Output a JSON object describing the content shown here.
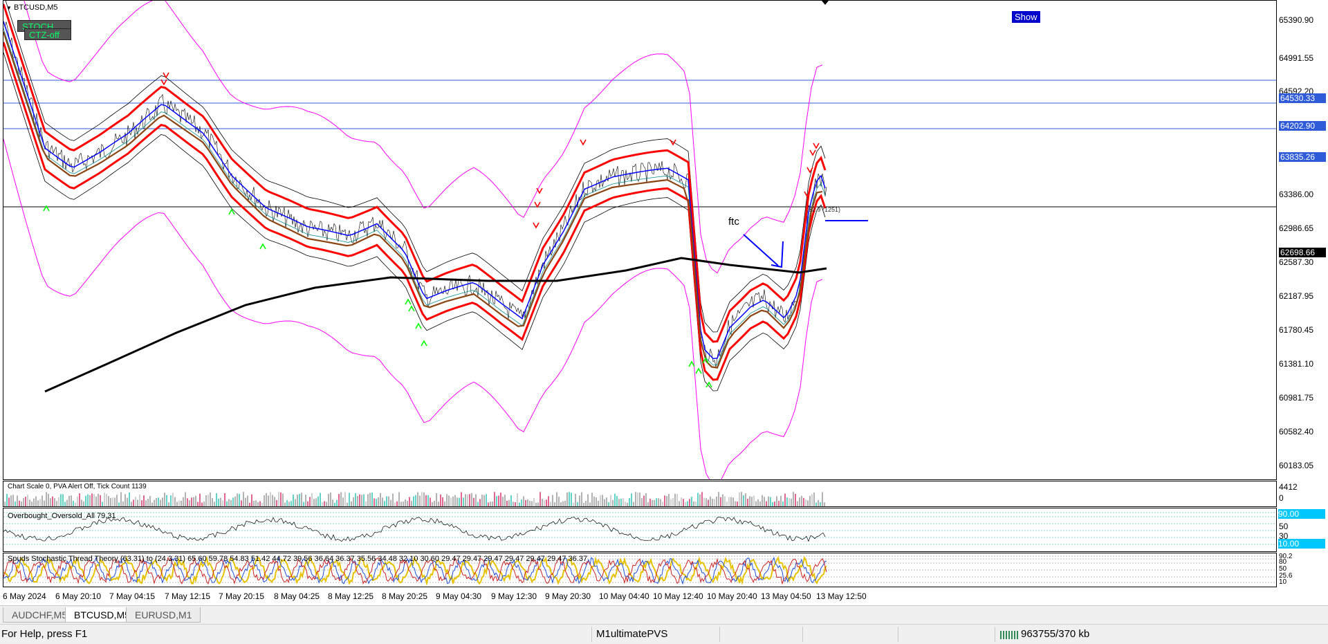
{
  "chart": {
    "symbol_label": "BTCUSD,M5",
    "indicator_buttons": [
      "STOCH",
      "CTZ-off"
    ],
    "show_button": "Show",
    "price_ticks": [
      "65390.90",
      "64991.55",
      "64592.20",
      "63386.00",
      "62986.65",
      "62587.30",
      "62187.95",
      "61780.45",
      "61381.10",
      "60981.75",
      "60582.40",
      "60183.05"
    ],
    "hlines": [
      {
        "label": "64530.33",
        "color": "#2f5bd8"
      },
      {
        "label": "64202.90",
        "color": "#2f5bd8"
      },
      {
        "label": "63835.26",
        "color": "#2f5bd8"
      },
      {
        "label": "62698.66",
        "color": "#000000"
      }
    ],
    "annotation_text": "ftc",
    "bar_info": "62.9 (1251)",
    "time_ticks": [
      "6 May 2024",
      "6 May 20:10",
      "7 May 04:15",
      "7 May 12:15",
      "7 May 20:15",
      "8 May 04:25",
      "8 May 12:25",
      "8 May 20:25",
      "9 May 04:30",
      "9 May 12:30",
      "9 May 20:30",
      "10 May 04:40",
      "10 May 12:40",
      "10 May 20:40",
      "13 May 04:50",
      "13 May 12:50"
    ]
  },
  "volume_pane": {
    "label": "Chart Scale  0,  PVA Alert Off,  Tick Count  1139",
    "ticks": [
      "4412",
      "0"
    ]
  },
  "osc_pane": {
    "label": "Overbought_Oversold_All 79.31",
    "ticks": [
      "90.00",
      "50",
      "30",
      "10.00"
    ]
  },
  "stoch_pane": {
    "label": "Spuds Stochastic Thread Theory (63.31) to (24.3.31) 65.60 59.78 54.83 51.42 44.72 39.56 36.64 36.37 35.56 34.48 32.10 30.60 29.47 29.47 29.47 29.47 29.47 29.47 36.37",
    "ticks": [
      "90.2",
      "80",
      "50",
      "25.6",
      "10"
    ]
  },
  "tabs": [
    {
      "label": "AUDCHF,M5",
      "active": false
    },
    {
      "label": "BTCUSD,M5",
      "active": true
    },
    {
      "label": "EURUSD,M1",
      "active": false
    }
  ],
  "status": {
    "help": "For Help, press F1",
    "profile": "M1ultimatePVS",
    "traffic": "963755/370 kb"
  },
  "colors": {
    "ma_red": "#ff0000",
    "ma_blue": "#0000ff",
    "ma_brown": "#8b4513",
    "band_magenta": "#ff00ff",
    "arrow_up": "#00ff00",
    "arrow_down": "#ff0000",
    "line_blue": "#2f5bd8",
    "label_cyan": "#00c8ff"
  }
}
